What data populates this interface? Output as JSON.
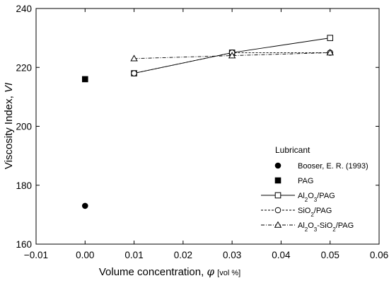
{
  "chart_data": {
    "type": "scatter",
    "xlabel": "Volume concentration,",
    "xlabel_symbol": "φ",
    "xlabel_unit": "[vol %]",
    "ylabel": "Viscosity Index,",
    "ylabel_symbol": "VI",
    "xlim": [
      -0.01,
      0.06
    ],
    "ylim": [
      160,
      240
    ],
    "xticks": [
      "−0.01",
      "0.00",
      "0.01",
      "0.02",
      "0.03",
      "0.04",
      "0.05",
      "0.06"
    ],
    "xtick_values": [
      -0.01,
      0.0,
      0.01,
      0.02,
      0.03,
      0.04,
      0.05,
      0.06
    ],
    "yticks": [
      "160",
      "180",
      "200",
      "220",
      "240"
    ],
    "ytick_values": [
      160,
      180,
      200,
      220,
      240
    ],
    "grid": false,
    "legend": {
      "title": "Lubricant",
      "placement": "bottom-right",
      "entries": [
        {
          "label": "Booser, E. R. (1993)",
          "parts": [
            {
              "t": "Booser, E. R. (1993)"
            }
          ]
        },
        {
          "label": "PAG",
          "parts": [
            {
              "t": "PAG"
            }
          ]
        },
        {
          "label": "Al2O3/PAG",
          "parts": [
            {
              "t": "Al"
            },
            {
              "t": "2",
              "sub": true
            },
            {
              "t": "O"
            },
            {
              "t": "3",
              "sub": true
            },
            {
              "t": "/PAG"
            }
          ]
        },
        {
          "label": "SiO2/PAG",
          "parts": [
            {
              "t": "SiO"
            },
            {
              "t": "2",
              "sub": true
            },
            {
              "t": "/PAG"
            }
          ]
        },
        {
          "label": "Al2O3-SiO2/PAG",
          "parts": [
            {
              "t": "Al"
            },
            {
              "t": "2",
              "sub": true
            },
            {
              "t": "O"
            },
            {
              "t": "3",
              "sub": true
            },
            {
              "t": "-SiO"
            },
            {
              "t": "2",
              "sub": true
            },
            {
              "t": "/PAG"
            }
          ]
        }
      ]
    },
    "series": [
      {
        "name": "Booser, E. R. (1993)",
        "marker": "circle-filled",
        "line": "none",
        "x": [
          0.0
        ],
        "y": [
          173
        ]
      },
      {
        "name": "PAG",
        "marker": "square-filled",
        "line": "none",
        "x": [
          0.0
        ],
        "y": [
          216
        ]
      },
      {
        "name": "Al2O3/PAG",
        "marker": "square-open",
        "line": "solid",
        "x": [
          0.01,
          0.03,
          0.05
        ],
        "y": [
          218,
          225,
          230
        ]
      },
      {
        "name": "SiO2/PAG",
        "marker": "circle-open",
        "line": "dashed",
        "x": [
          0.01,
          0.03,
          0.05
        ],
        "y": [
          218,
          225,
          225
        ]
      },
      {
        "name": "Al2O3-SiO2/PAG",
        "marker": "triangle-open",
        "line": "dashdot",
        "x": [
          0.01,
          0.03,
          0.05
        ],
        "y": [
          223,
          224,
          225
        ]
      }
    ]
  }
}
